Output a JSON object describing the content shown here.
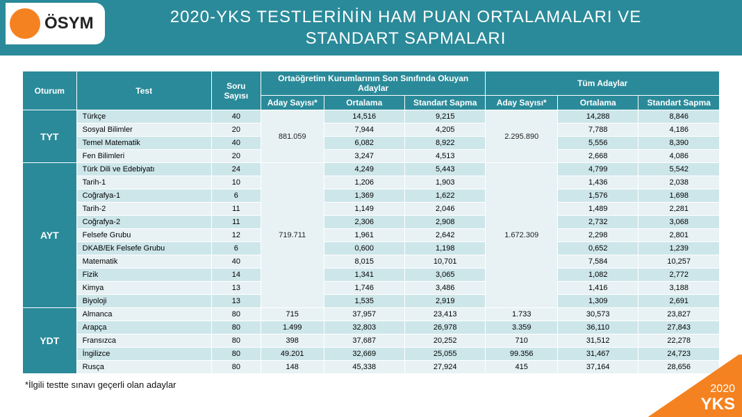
{
  "brand": {
    "logo_text": "ÖSYM",
    "circle_color": "#f58220"
  },
  "title_line1": "2020-YKS TESTLERİNİN HAM PUAN ORTALAMALARI VE",
  "title_line2": "STANDART SAPMALARI",
  "colors": {
    "header_bg": "#2a8a99",
    "row_dark": "#cde6ea",
    "row_light": "#e8f2f4",
    "corner": "#f58220"
  },
  "columns": {
    "oturum": "Oturum",
    "test": "Test",
    "soru": "Soru Sayısı",
    "group_last": "Ortaöğretim Kurumlarının Son Sınıfında Okuyan Adaylar",
    "group_all": "Tüm Adaylar",
    "aday": "Aday Sayısı*",
    "ort": "Ortalama",
    "sapma": "Standart Sapma"
  },
  "sessions": [
    {
      "name": "TYT",
      "aday_last": "881.059",
      "aday_all": "2.295.890",
      "tests": [
        {
          "name": "Türkçe",
          "soru": "40",
          "ort_l": "14,516",
          "sap_l": "9,215",
          "ort_a": "14,288",
          "sap_a": "8,846"
        },
        {
          "name": "Sosyal Bilimler",
          "soru": "20",
          "ort_l": "7,944",
          "sap_l": "4,205",
          "ort_a": "7,788",
          "sap_a": "4,186"
        },
        {
          "name": "Temel Matematik",
          "soru": "40",
          "ort_l": "6,082",
          "sap_l": "8,922",
          "ort_a": "5,556",
          "sap_a": "8,390"
        },
        {
          "name": "Fen Bilimleri",
          "soru": "20",
          "ort_l": "3,247",
          "sap_l": "4,513",
          "ort_a": "2,668",
          "sap_a": "4,086"
        }
      ]
    },
    {
      "name": "AYT",
      "aday_last": "719.711",
      "aday_all": "1.672.309",
      "tests": [
        {
          "name": "Türk Dili ve Edebiyatı",
          "soru": "24",
          "ort_l": "4,249",
          "sap_l": "5,443",
          "ort_a": "4,799",
          "sap_a": "5,542"
        },
        {
          "name": "Tarih-1",
          "soru": "10",
          "ort_l": "1,206",
          "sap_l": "1,903",
          "ort_a": "1,436",
          "sap_a": "2,038"
        },
        {
          "name": "Coğrafya-1",
          "soru": "6",
          "ort_l": "1,369",
          "sap_l": "1,622",
          "ort_a": "1,576",
          "sap_a": "1,698"
        },
        {
          "name": "Tarih-2",
          "soru": "11",
          "ort_l": "1,149",
          "sap_l": "2,046",
          "ort_a": "1,489",
          "sap_a": "2,281"
        },
        {
          "name": "Coğrafya-2",
          "soru": "11",
          "ort_l": "2,306",
          "sap_l": "2,908",
          "ort_a": "2,732",
          "sap_a": "3,068"
        },
        {
          "name": "Felsefe Grubu",
          "soru": "12",
          "ort_l": "1,961",
          "sap_l": "2,642",
          "ort_a": "2,298",
          "sap_a": "2,801"
        },
        {
          "name": "DKAB/Ek Felsefe Grubu",
          "soru": "6",
          "ort_l": "0,600",
          "sap_l": "1,198",
          "ort_a": "0,652",
          "sap_a": "1,239"
        },
        {
          "name": "Matematik",
          "soru": "40",
          "ort_l": "8,015",
          "sap_l": "10,701",
          "ort_a": "7,584",
          "sap_a": "10,257"
        },
        {
          "name": "Fizik",
          "soru": "14",
          "ort_l": "1,341",
          "sap_l": "3,065",
          "ort_a": "1,082",
          "sap_a": "2,772"
        },
        {
          "name": "Kimya",
          "soru": "13",
          "ort_l": "1,746",
          "sap_l": "3,486",
          "ort_a": "1,416",
          "sap_a": "3,188"
        },
        {
          "name": "Biyoloji",
          "soru": "13",
          "ort_l": "1,535",
          "sap_l": "2,919",
          "ort_a": "1,309",
          "sap_a": "2,691"
        }
      ]
    },
    {
      "name": "YDT",
      "per_row_aday": true,
      "tests": [
        {
          "name": "Almanca",
          "soru": "80",
          "aday_l": "715",
          "ort_l": "37,957",
          "sap_l": "23,413",
          "aday_a": "1.733",
          "ort_a": "30,573",
          "sap_a": "23,827"
        },
        {
          "name": "Arapça",
          "soru": "80",
          "aday_l": "1.499",
          "ort_l": "32,803",
          "sap_l": "26,978",
          "aday_a": "3.359",
          "ort_a": "36,110",
          "sap_a": "27,843"
        },
        {
          "name": "Fransızca",
          "soru": "80",
          "aday_l": "398",
          "ort_l": "37,687",
          "sap_l": "20,252",
          "aday_a": "710",
          "ort_a": "31,512",
          "sap_a": "22,278"
        },
        {
          "name": "İngilizce",
          "soru": "80",
          "aday_l": "49.201",
          "ort_l": "32,669",
          "sap_l": "25,055",
          "aday_a": "99.356",
          "ort_a": "31,467",
          "sap_a": "24,723"
        },
        {
          "name": "Rusça",
          "soru": "80",
          "aday_l": "148",
          "ort_l": "45,338",
          "sap_l": "27,924",
          "aday_a": "415",
          "ort_a": "37,164",
          "sap_a": "28,656"
        }
      ]
    }
  ],
  "footnote": "*İlgili testte sınavı geçerli olan adaylar",
  "corner": {
    "year": "2020",
    "label": "YKS"
  }
}
